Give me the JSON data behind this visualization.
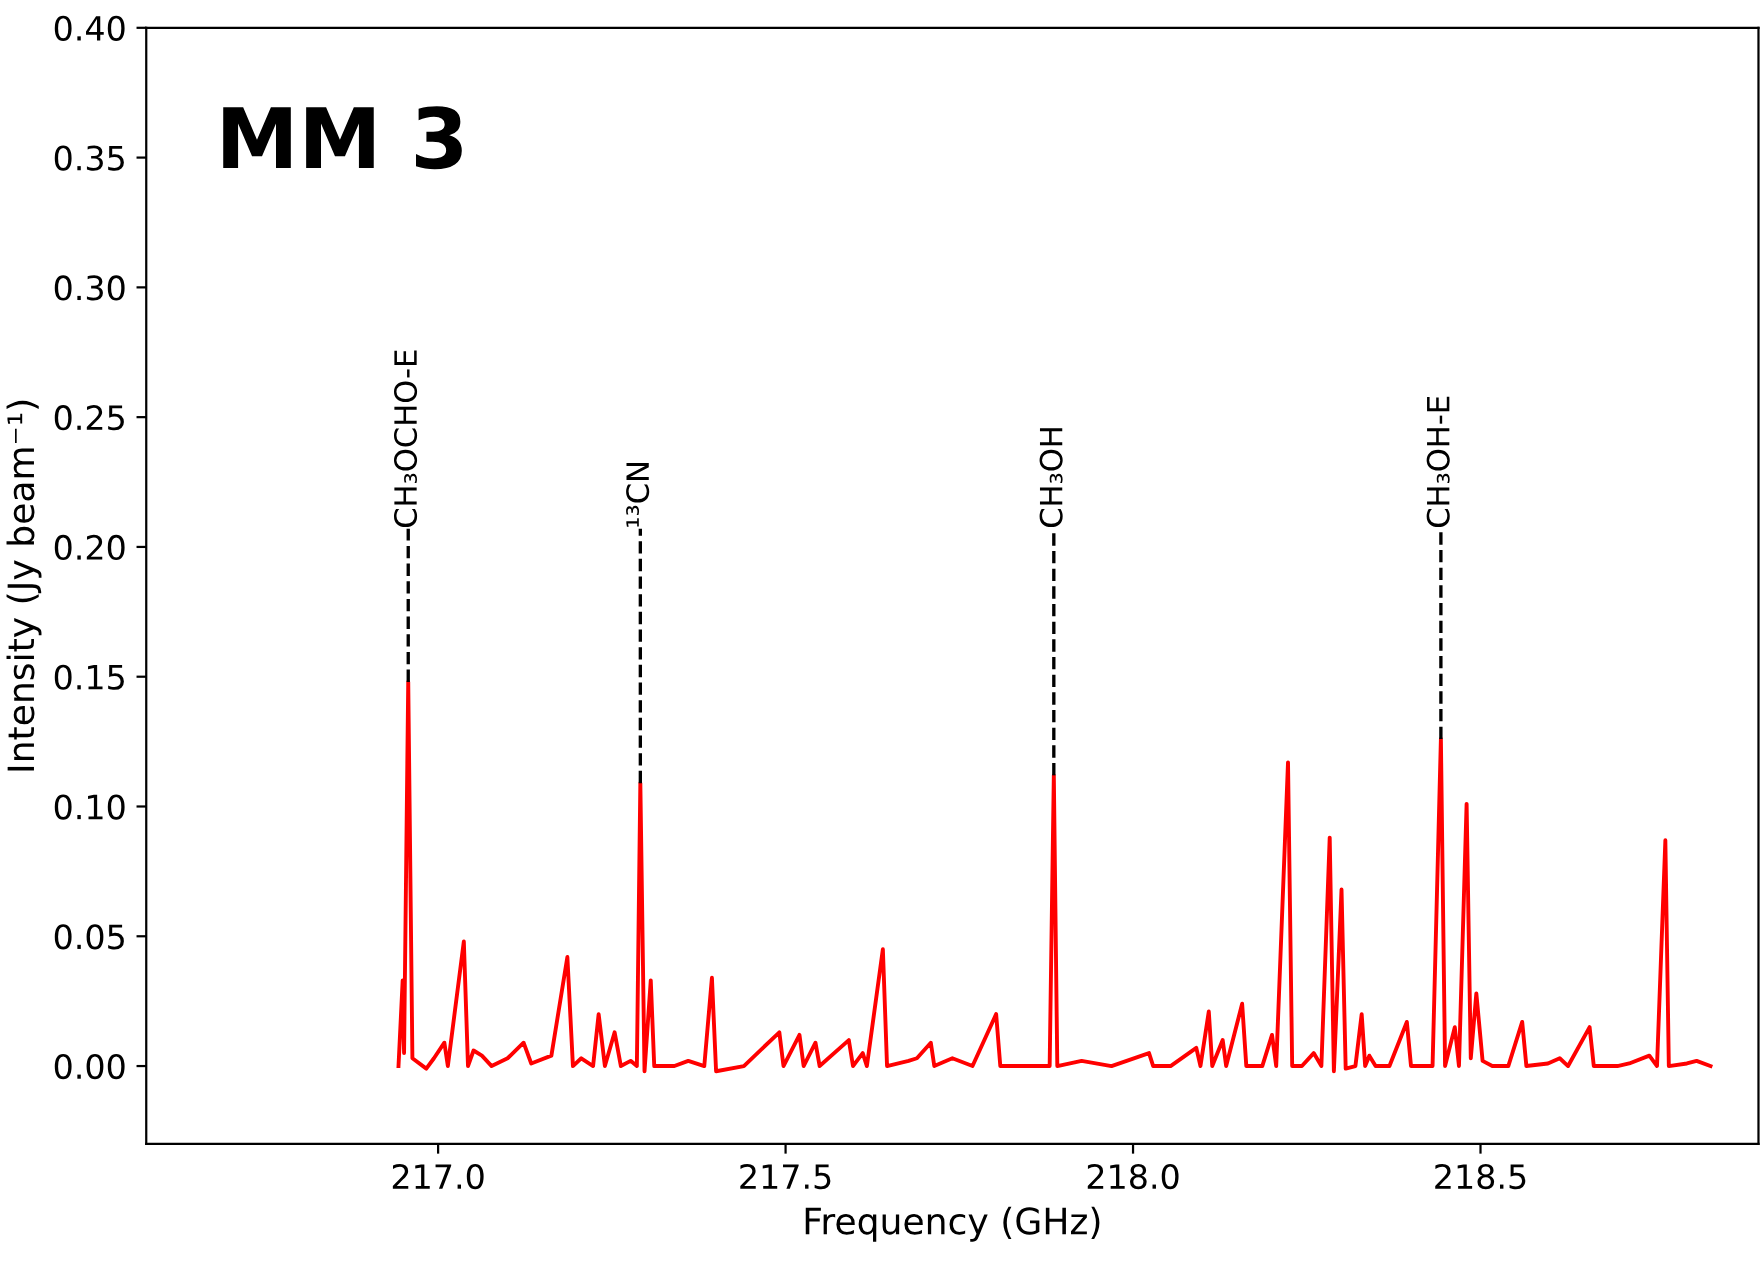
{
  "chart_data": {
    "type": "line",
    "xlabel": "Frequency (GHz)",
    "ylabel": "Intensity (Jy beam⁻¹)",
    "annotations": [
      "MM 3",
      {
        "text": "CH₃OCHO-E",
        "x": 216.957,
        "y": 0.148
      },
      {
        "text": "¹³CN",
        "x": 217.291,
        "y": 0.109
      },
      {
        "text": "CH₃OH",
        "x": 217.886,
        "y": 0.112
      },
      {
        "text": "CH₃OH-E",
        "x": 218.443,
        "y": 0.126
      }
    ],
    "xlim": [
      216.58,
      218.9
    ],
    "ylim": [
      -0.03,
      0.4
    ],
    "xticks": [
      {
        "value": 217,
        "label": "217.0"
      },
      {
        "value": 217.5,
        "label": "217.5"
      },
      {
        "value": 218,
        "label": "218.0"
      },
      {
        "value": 218.5,
        "label": "218.5"
      }
    ],
    "yticks": [
      {
        "value": 0,
        "label": "0.00"
      },
      {
        "value": 0.05,
        "label": "0.05"
      },
      {
        "value": 0.1,
        "label": "0.10"
      },
      {
        "value": 0.15,
        "label": "0.15"
      },
      {
        "value": 0.2,
        "label": "0.20"
      },
      {
        "value": 0.25,
        "label": "0.25"
      },
      {
        "value": 0.3,
        "label": "0.30"
      },
      {
        "value": 0.35,
        "label": "0.35"
      },
      {
        "value": 0.4,
        "label": "0.40"
      }
    ],
    "grid": false,
    "marker": "none",
    "line_style": "solid",
    "series": [
      {
        "color": "#ff0000",
        "x": [
          216.943,
          216.949,
          216.951,
          216.957,
          216.963,
          216.983,
          216.994,
          217.009,
          217.014,
          217.037,
          217.043,
          217.051,
          217.063,
          217.077,
          217.1,
          217.123,
          217.134,
          217.163,
          217.186,
          217.194,
          217.206,
          217.223,
          217.231,
          217.24,
          217.254,
          217.263,
          217.277,
          217.286,
          217.291,
          217.297,
          217.306,
          217.311,
          217.34,
          217.36,
          217.383,
          217.394,
          217.4,
          217.44,
          217.491,
          217.497,
          217.52,
          217.526,
          217.543,
          217.549,
          217.591,
          217.597,
          217.611,
          217.617,
          217.64,
          217.646,
          217.677,
          217.689,
          217.709,
          217.714,
          217.74,
          217.769,
          217.803,
          217.809,
          217.854,
          217.88,
          217.886,
          217.891,
          217.926,
          217.969,
          218.023,
          218.029,
          218.054,
          218.091,
          218.097,
          218.109,
          218.114,
          218.129,
          218.134,
          218.157,
          218.163,
          218.186,
          218.2,
          218.206,
          218.223,
          218.229,
          218.243,
          218.26,
          218.271,
          218.283,
          218.289,
          218.3,
          218.306,
          218.32,
          218.329,
          218.334,
          218.34,
          218.349,
          218.369,
          218.394,
          218.4,
          218.431,
          218.443,
          218.449,
          218.463,
          218.469,
          218.48,
          218.486,
          218.494,
          218.503,
          218.517,
          218.54,
          218.56,
          218.566,
          218.597,
          218.614,
          218.626,
          218.657,
          218.663,
          218.697,
          218.714,
          218.743,
          218.754,
          218.766,
          218.771,
          218.797,
          218.811,
          218.831
        ],
        "values": [
          0.0,
          0.033,
          0.005,
          0.148,
          0.003,
          -0.001,
          0.003,
          0.009,
          0.0,
          0.048,
          0.0,
          0.006,
          0.004,
          0.0,
          0.003,
          0.009,
          0.001,
          0.004,
          0.042,
          0.0,
          0.003,
          0.0,
          0.02,
          0.0,
          0.013,
          0.0,
          0.002,
          0.0,
          0.109,
          -0.002,
          0.033,
          0.0,
          0.0,
          0.002,
          0.0,
          0.034,
          -0.002,
          0.0,
          0.013,
          0.0,
          0.012,
          0.0,
          0.009,
          0.0,
          0.01,
          0.0,
          0.005,
          0.0,
          0.045,
          0.0,
          0.002,
          0.003,
          0.009,
          0.0,
          0.003,
          0.0,
          0.02,
          0.0,
          0.0,
          0.0,
          0.112,
          0.0,
          0.002,
          0.0,
          0.005,
          0.0,
          0.0,
          0.007,
          0.0,
          0.021,
          0.0,
          0.01,
          0.0,
          0.024,
          0.0,
          0.0,
          0.012,
          0.0,
          0.117,
          0.0,
          0.0,
          0.005,
          0.0,
          0.088,
          -0.002,
          0.068,
          -0.001,
          0.0,
          0.02,
          0.0,
          0.004,
          0.0,
          0.0,
          0.017,
          0.0,
          0.0,
          0.126,
          0.0,
          0.015,
          0.0,
          0.101,
          0.003,
          0.028,
          0.002,
          0.0,
          0.0,
          0.017,
          0.0,
          0.001,
          0.003,
          0.0,
          0.015,
          0.0,
          0.0,
          0.001,
          0.004,
          0.0,
          0.087,
          0.0,
          0.001,
          0.002,
          0.0
        ]
      }
    ]
  }
}
